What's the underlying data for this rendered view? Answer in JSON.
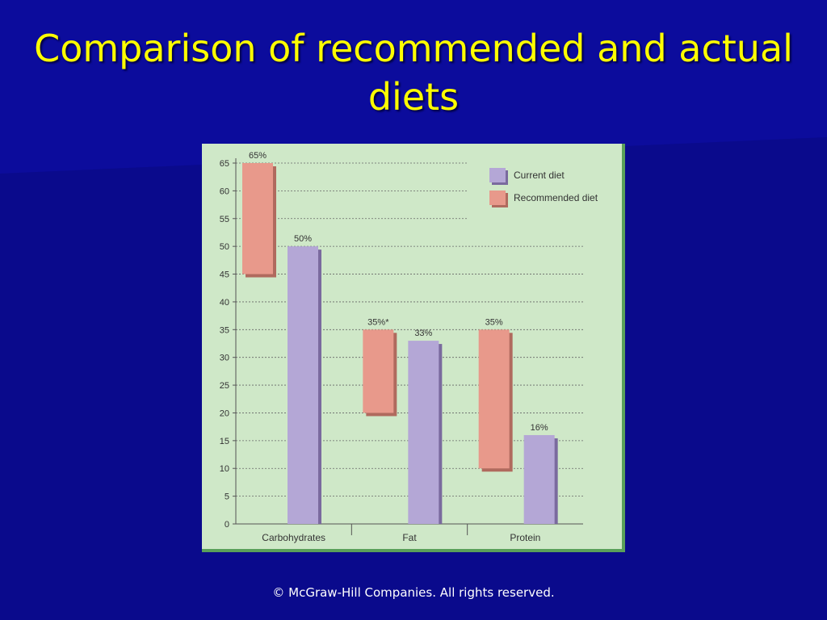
{
  "slide": {
    "title": "Comparison of recommended and actual diets",
    "footer": "© McGraw-Hill Companies. All rights reserved."
  },
  "colors": {
    "background": "#0a0a8c",
    "title": "#ffff00",
    "chart_background": "#cfe8c8",
    "current": "#b4a7d6",
    "recommended": "#e8998b"
  },
  "chart_data": {
    "type": "bar",
    "title": "",
    "xlabel": "",
    "ylabel": "",
    "categories": [
      "Carbohydrates",
      "Fat",
      "Protein"
    ],
    "ylim": [
      0,
      65
    ],
    "yticks": [
      0,
      5,
      10,
      15,
      20,
      25,
      30,
      35,
      40,
      45,
      50,
      55,
      60,
      65
    ],
    "grid": true,
    "legend_position": "top-right",
    "series": [
      {
        "name": "Recommended diet",
        "kind": "range",
        "ranges": [
          [
            45,
            65
          ],
          [
            20,
            35
          ],
          [
            10,
            35
          ]
        ],
        "labels": [
          "65%",
          "35%*",
          "35%"
        ]
      },
      {
        "name": "Current diet",
        "kind": "value",
        "values": [
          50,
          33,
          16
        ],
        "labels": [
          "50%",
          "33%",
          "16%"
        ]
      }
    ],
    "legend": [
      "Current diet",
      "Recommended diet"
    ]
  }
}
